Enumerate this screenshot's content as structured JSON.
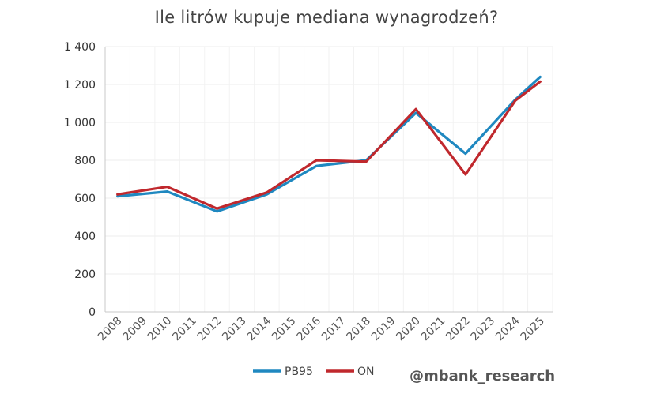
{
  "chart_data": {
    "type": "line",
    "title": "Ile litrów kupuje mediana wynagrodzeń?",
    "x": [
      "2008",
      "2009",
      "2010",
      "2011",
      "2012",
      "2013",
      "2014",
      "2015",
      "2016",
      "2017",
      "2018",
      "2019",
      "2020",
      "2021",
      "2022",
      "2023",
      "2024",
      "2025"
    ],
    "y_ticks": [
      "0",
      "200",
      "400",
      "600",
      "800",
      "1 000",
      "1 200",
      "1 400"
    ],
    "ylim": [
      0,
      1400
    ],
    "grid": true,
    "legend_position": "bottom",
    "series": [
      {
        "name": "PB95",
        "color": "#1f88c0",
        "x": [
          "2008",
          "2010",
          "2012",
          "2014",
          "2016",
          "2018",
          "2020",
          "2022",
          "2024",
          "2025"
        ],
        "values": [
          610,
          635,
          530,
          620,
          770,
          800,
          1050,
          835,
          1120,
          1240
        ]
      },
      {
        "name": "ON",
        "color": "#c0282d",
        "x": [
          "2008",
          "2010",
          "2012",
          "2014",
          "2016",
          "2018",
          "2020",
          "2022",
          "2024",
          "2025"
        ],
        "values": [
          620,
          660,
          545,
          630,
          800,
          793,
          1070,
          725,
          1115,
          1215
        ]
      }
    ]
  },
  "watermark": "@mbank_research"
}
